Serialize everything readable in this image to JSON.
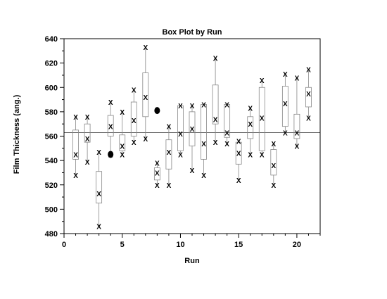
{
  "chart_data": {
    "type": "box",
    "title": "Box Plot by Run",
    "xlabel": "Run",
    "ylabel": "Film Thickness (ang.)",
    "xlim": [
      0,
      22
    ],
    "ylim": [
      480,
      640
    ],
    "x_ticks": [
      0,
      5,
      10,
      15,
      20
    ],
    "y_ticks": [
      480,
      500,
      520,
      540,
      560,
      580,
      600,
      620,
      640
    ],
    "reference_line_y": 563,
    "point_marker": "X",
    "boxes": [
      {
        "run": 1,
        "q1": 541,
        "median": 545,
        "q3": 565,
        "min": 528,
        "max": 576
      },
      {
        "run": 2,
        "q1": 555,
        "median": 558,
        "q3": 570,
        "min": 539,
        "max": 576
      },
      {
        "run": 3,
        "q1": 505,
        "median": 513,
        "q3": 531,
        "min": 486,
        "max": 547
      },
      {
        "run": 4,
        "q1": 560,
        "median": 568,
        "q3": 577,
        "min": 545,
        "max": 588
      },
      {
        "run": 5,
        "q1": 548,
        "median": 552,
        "q3": 561,
        "min": 545,
        "max": 580
      },
      {
        "run": 6,
        "q1": 560,
        "median": 573,
        "q3": 588,
        "min": 555,
        "max": 598
      },
      {
        "run": 7,
        "q1": 576,
        "median": 592,
        "q3": 612,
        "min": 558,
        "max": 633
      },
      {
        "run": 8,
        "q1": 524,
        "median": 530,
        "q3": 534,
        "min": 520,
        "max": 538
      },
      {
        "run": 9,
        "q1": 533,
        "median": 547,
        "q3": 557,
        "min": 520,
        "max": 568
      },
      {
        "run": 10,
        "q1": 548,
        "median": 562,
        "q3": 585,
        "min": 545,
        "max": 585
      },
      {
        "run": 11,
        "q1": 552,
        "median": 566,
        "q3": 580,
        "min": 532,
        "max": 585
      },
      {
        "run": 12,
        "q1": 541,
        "median": 554,
        "q3": 586,
        "min": 528,
        "max": 586
      },
      {
        "run": 13,
        "q1": 570,
        "median": 574,
        "q3": 602,
        "min": 555,
        "max": 624
      },
      {
        "run": 14,
        "q1": 559,
        "median": 563,
        "q3": 586,
        "min": 554,
        "max": 586
      },
      {
        "run": 15,
        "q1": 537,
        "median": 546,
        "q3": 555,
        "min": 524,
        "max": 556
      },
      {
        "run": 16,
        "q1": 558,
        "median": 570,
        "q3": 576,
        "min": 545,
        "max": 583
      },
      {
        "run": 17,
        "q1": 548,
        "median": 575,
        "q3": 600,
        "min": 545,
        "max": 606
      },
      {
        "run": 18,
        "q1": 528,
        "median": 536,
        "q3": 549,
        "min": 520,
        "max": 554
      },
      {
        "run": 19,
        "q1": 568,
        "median": 587,
        "q3": 601,
        "min": 563,
        "max": 611
      },
      {
        "run": 20,
        "q1": 558,
        "median": 563,
        "q3": 578,
        "min": 552,
        "max": 608
      },
      {
        "run": 21,
        "q1": 584,
        "median": 595,
        "q3": 600,
        "min": 575,
        "max": 615
      }
    ],
    "outliers": [
      {
        "run": 4,
        "y": 545
      },
      {
        "run": 8,
        "y": 581
      }
    ]
  }
}
